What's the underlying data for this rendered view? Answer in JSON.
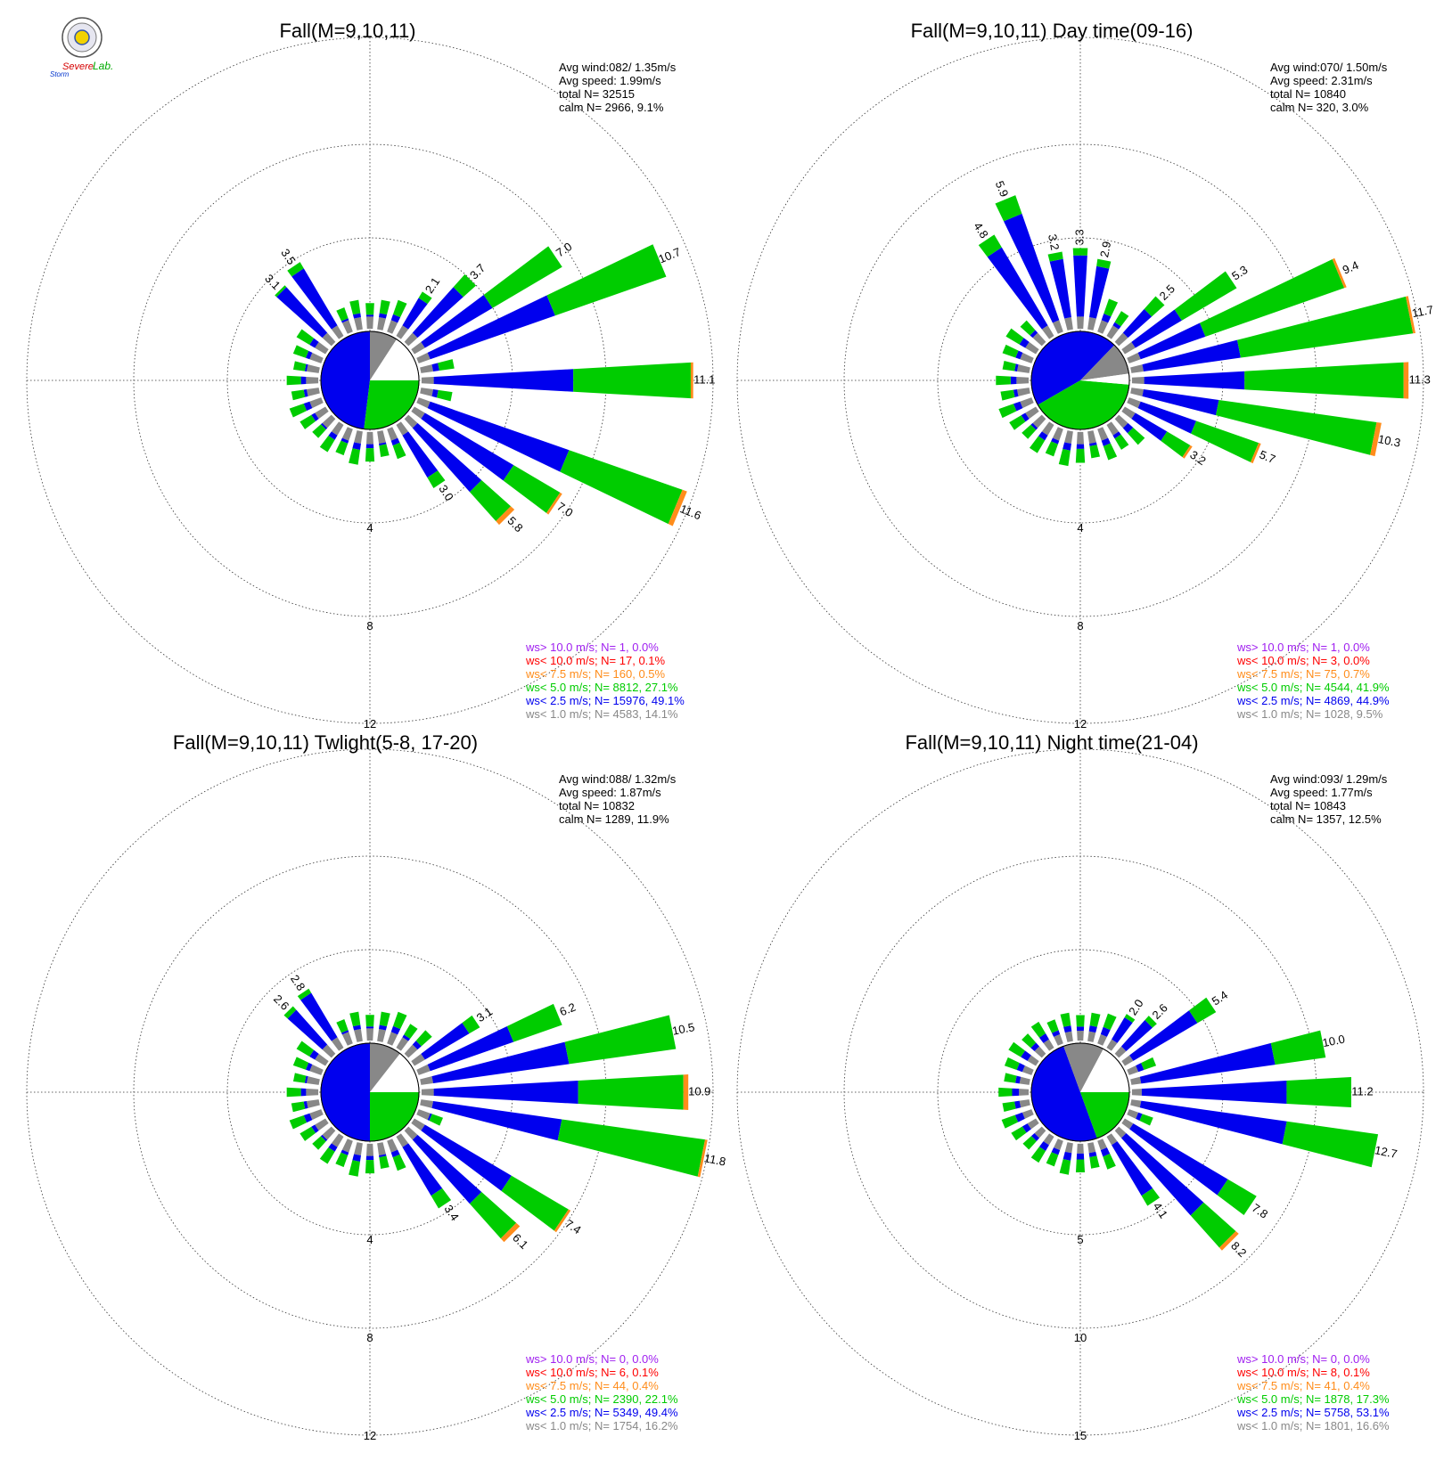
{
  "logo": {
    "text_top": "Severe",
    "text_bottom": "Storm",
    "text_right": "Lab."
  },
  "colors": {
    "purple": "#a020f0",
    "red": "#ff0000",
    "orange": "#ff8c1a",
    "green": "#00cc00",
    "blue": "#0000ee",
    "gray": "#888888"
  },
  "chart_data": [
    {
      "type": "windrose",
      "title": "Fall(M=9,10,11)",
      "stats": [
        "Avg wind:082/ 1.35m/s",
        "Avg speed: 1.99m/s",
        "total N=      32515",
        "calm N=   2966,   9.1%"
      ],
      "rings": [
        "4",
        "8",
        "12"
      ],
      "rmax": 12,
      "petals": [
        {
          "dir": 112.5,
          "total": 11.6,
          "blue": 6.5,
          "orange": 0.2,
          "label": "11.6"
        },
        {
          "dir": 90,
          "total": 11.1,
          "blue": 6.2,
          "orange": 0.1,
          "label": "11.1"
        },
        {
          "dir": 67.5,
          "total": 10.7,
          "blue": 5.9,
          "orange": 0.0,
          "label": "10.7"
        },
        {
          "dir": 56.25,
          "total": 7.0,
          "blue": 3.7,
          "orange": 0.0,
          "label": "7.0"
        },
        {
          "dir": 123.75,
          "total": 7.0,
          "blue": 4.7,
          "orange": 0.1,
          "label": "7.0"
        },
        {
          "dir": 135,
          "total": 5.8,
          "blue": 4.0,
          "orange": 0.2,
          "label": "5.8"
        },
        {
          "dir": 45,
          "total": 3.7,
          "blue": 3.0,
          "orange": 0.0,
          "label": "3.7"
        },
        {
          "dir": 146.25,
          "total": 3.0,
          "blue": 2.5,
          "orange": 0.0,
          "label": "3.0"
        },
        {
          "dir": 33.75,
          "total": 2.1,
          "blue": 1.8,
          "orange": 0.0,
          "label": "2.1"
        },
        {
          "dir": 326.25,
          "total": 3.5,
          "blue": 3.2,
          "orange": 0.0,
          "label": "3.5"
        },
        {
          "dir": 315,
          "total": 3.1,
          "blue": 3.0,
          "orange": 0.0,
          "label": "3.1"
        }
      ],
      "small_default": 1.05,
      "pie": {
        "gray_from": 0,
        "gray_to": 33,
        "white_from": 33,
        "white_to": 90,
        "green_from": 90,
        "green_to": 187,
        "blue_from": 187,
        "blue_to": 360
      },
      "legend": [
        {
          "text": "ws> 10.0 m/s; N=     1,  0.0%",
          "color": "purple"
        },
        {
          "text": "ws< 10.0 m/s; N=    17,  0.1%",
          "color": "red"
        },
        {
          "text": "ws<  7.5 m/s; N=   160,  0.5%",
          "color": "orange"
        },
        {
          "text": "ws<  5.0 m/s; N=  8812, 27.1%",
          "color": "green"
        },
        {
          "text": "ws<  2.5 m/s; N= 15976, 49.1%",
          "color": "blue"
        },
        {
          "text": "ws<  1.0 m/s; N=  4583, 14.1%",
          "color": "gray"
        }
      ]
    },
    {
      "type": "windrose",
      "title": "Fall(M=9,10,11) Day time(09-16)",
      "stats": [
        "Avg wind:070/ 1.50m/s",
        "Avg speed: 2.31m/s",
        "total N=      10840",
        "calm N=    320,   3.0%"
      ],
      "rings": [
        "4",
        "8",
        "12"
      ],
      "rmax": 12,
      "petals": [
        {
          "dir": 78.75,
          "total": 11.7,
          "blue": 4.5,
          "orange": 0.1,
          "label": "11.7"
        },
        {
          "dir": 90,
          "total": 11.3,
          "blue": 4.6,
          "orange": 0.2,
          "label": "11.3"
        },
        {
          "dir": 101.25,
          "total": 10.3,
          "blue": 3.6,
          "orange": 0.2,
          "label": "10.3"
        },
        {
          "dir": 67.5,
          "total": 9.4,
          "blue": 3.3,
          "orange": 0.1,
          "label": "9.4"
        },
        {
          "dir": 56.25,
          "total": 5.3,
          "blue": 2.7,
          "orange": 0.0,
          "label": "5.3"
        },
        {
          "dir": 112.5,
          "total": 5.7,
          "blue": 2.9,
          "orange": 0.1,
          "label": "5.7"
        },
        {
          "dir": 123.75,
          "total": 3.2,
          "blue": 2.0,
          "orange": 0.1,
          "label": "3.2"
        },
        {
          "dir": 45,
          "total": 2.5,
          "blue": 1.8,
          "orange": 0.0,
          "label": "2.5"
        },
        {
          "dir": 337.5,
          "total": 5.9,
          "blue": 5.1,
          "orange": 0.0,
          "label": "5.9"
        },
        {
          "dir": 326.25,
          "total": 4.8,
          "blue": 4.2,
          "orange": 0.0,
          "label": "4.8"
        },
        {
          "dir": 348.75,
          "total": 3.2,
          "blue": 2.9,
          "orange": 0.0,
          "label": "3.2"
        },
        {
          "dir": 0,
          "total": 3.3,
          "blue": 3.0,
          "orange": 0.0,
          "label": "3.3"
        },
        {
          "dir": 11.25,
          "total": 2.9,
          "blue": 2.6,
          "orange": 0.0,
          "label": "2.9"
        }
      ],
      "small_default": 1.1,
      "pie": {
        "gray_from": 44,
        "gray_to": 82,
        "white_from": 82,
        "white_to": 95,
        "green_from": 95,
        "green_to": 240,
        "blue_from": 240,
        "blue_to": 404
      },
      "legend": [
        {
          "text": "ws> 10.0 m/s; N=     1,  0.0%",
          "color": "purple"
        },
        {
          "text": "ws< 10.0 m/s; N=     3,  0.0%",
          "color": "red"
        },
        {
          "text": "ws<  7.5 m/s; N=    75,  0.7%",
          "color": "orange"
        },
        {
          "text": "ws<  5.0 m/s; N=  4544, 41.9%",
          "color": "green"
        },
        {
          "text": "ws<  2.5 m/s; N=  4869, 44.9%",
          "color": "blue"
        },
        {
          "text": "ws<  1.0 m/s; N=  1028,  9.5%",
          "color": "gray"
        }
      ]
    },
    {
      "type": "windrose",
      "title": "Fall(M=9,10,11) Twlight(5-8, 17-20)",
      "stats": [
        "Avg wind:088/ 1.32m/s",
        "Avg speed: 1.87m/s",
        "total N=      10832",
        "calm N=   1289,  11.9%"
      ],
      "rings": [
        "4",
        "8",
        "12"
      ],
      "rmax": 12,
      "petals": [
        {
          "dir": 101.25,
          "total": 11.8,
          "blue": 5.8,
          "orange": 0.1,
          "label": "11.8"
        },
        {
          "dir": 90,
          "total": 10.9,
          "blue": 6.4,
          "orange": 0.2,
          "label": "10.9"
        },
        {
          "dir": 78.75,
          "total": 10.5,
          "blue": 6.1,
          "orange": 0.0,
          "label": "10.5"
        },
        {
          "dir": 123.75,
          "total": 7.4,
          "blue": 4.6,
          "orange": 0.1,
          "label": "7.4"
        },
        {
          "dir": 67.5,
          "total": 6.2,
          "blue": 4.1,
          "orange": 0.0,
          "label": "6.2"
        },
        {
          "dir": 135,
          "total": 6.1,
          "blue": 4.0,
          "orange": 0.2,
          "label": "6.1"
        },
        {
          "dir": 146.25,
          "total": 3.4,
          "blue": 2.8,
          "orange": 0.0,
          "label": "3.4"
        },
        {
          "dir": 56.25,
          "total": 3.1,
          "blue": 2.6,
          "orange": 0.0,
          "label": "3.1"
        },
        {
          "dir": 326.25,
          "total": 2.8,
          "blue": 2.6,
          "orange": 0.0,
          "label": "2.8"
        },
        {
          "dir": 315,
          "total": 2.6,
          "blue": 2.4,
          "orange": 0.0,
          "label": "2.6"
        }
      ],
      "small_default": 1.05,
      "pie": {
        "gray_from": 0,
        "gray_to": 38,
        "white_from": 38,
        "white_to": 90,
        "green_from": 90,
        "green_to": 180,
        "blue_from": 180,
        "blue_to": 360
      },
      "legend": [
        {
          "text": "ws> 10.0 m/s; N=     0,  0.0%",
          "color": "purple"
        },
        {
          "text": "ws< 10.0 m/s; N=     6,  0.1%",
          "color": "red"
        },
        {
          "text": "ws<  7.5 m/s; N=    44,  0.4%",
          "color": "orange"
        },
        {
          "text": "ws<  5.0 m/s; N=  2390, 22.1%",
          "color": "green"
        },
        {
          "text": "ws<  2.5 m/s; N=  5349, 49.4%",
          "color": "blue"
        },
        {
          "text": "ws<  1.0 m/s; N=  1754, 16.2%",
          "color": "gray"
        }
      ]
    },
    {
      "type": "windrose",
      "title": "Fall(M=9,10,11) Night time(21-04)",
      "stats": [
        "Avg wind:093/ 1.29m/s",
        "Avg speed: 1.77m/s",
        "total N=      10843",
        "calm N=   1357,  12.5%"
      ],
      "rings": [
        "5",
        "10",
        "15"
      ],
      "rmax": 15,
      "petals": [
        {
          "dir": 101.25,
          "total": 12.7,
          "blue": 8.0,
          "orange": 0.0,
          "label": "12.7"
        },
        {
          "dir": 90,
          "total": 11.2,
          "blue": 7.9,
          "orange": 0.0,
          "label": "11.2"
        },
        {
          "dir": 78.75,
          "total": 10.0,
          "blue": 7.4,
          "orange": 0.0,
          "label": "10.0"
        },
        {
          "dir": 135,
          "total": 8.2,
          "blue": 5.8,
          "orange": 0.2,
          "label": "8.2"
        },
        {
          "dir": 123.75,
          "total": 7.8,
          "blue": 6.1,
          "orange": 0.0,
          "label": "7.8"
        },
        {
          "dir": 56.25,
          "total": 5.4,
          "blue": 4.3,
          "orange": 0.0,
          "label": "5.4"
        },
        {
          "dir": 146.25,
          "total": 4.1,
          "blue": 3.5,
          "orange": 0.0,
          "label": "4.1"
        },
        {
          "dir": 45,
          "total": 2.6,
          "blue": 2.3,
          "orange": 0.0,
          "label": "2.6"
        },
        {
          "dir": 33.75,
          "total": 2.0,
          "blue": 1.8,
          "orange": 0.0,
          "label": "2.0"
        }
      ],
      "small_default": 1.3,
      "pie": {
        "gray_from": -20,
        "gray_to": 28,
        "white_from": 28,
        "white_to": 90,
        "green_from": 90,
        "green_to": 160,
        "blue_from": 160,
        "blue_to": 340
      },
      "legend": [
        {
          "text": "ws> 10.0 m/s; N=     0,  0.0%",
          "color": "purple"
        },
        {
          "text": "ws< 10.0 m/s; N=     8,  0.1%",
          "color": "red"
        },
        {
          "text": "ws<  7.5 m/s; N=    41,  0.4%",
          "color": "orange"
        },
        {
          "text": "ws<  5.0 m/s; N=  1878, 17.3%",
          "color": "green"
        },
        {
          "text": "ws<  2.5 m/s; N=  5758, 53.1%",
          "color": "blue"
        },
        {
          "text": "ws<  1.0 m/s; N=  1801, 16.6%",
          "color": "gray"
        }
      ]
    }
  ]
}
